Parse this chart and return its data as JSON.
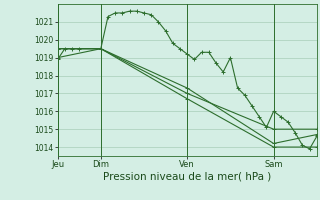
{
  "bg_color": "#d4eee4",
  "grid_color": "#a8cdb8",
  "line_color": "#2d6e2d",
  "marker_color": "#2d6e2d",
  "xlabel": "Pression niveau de la mer( hPa )",
  "xlabel_fontsize": 7.5,
  "ylim": [
    1013.5,
    1022.0
  ],
  "yticks": [
    1014,
    1015,
    1016,
    1017,
    1018,
    1019,
    1020,
    1021
  ],
  "xtick_labels": [
    "Jeu",
    "Dim",
    "Ven",
    "Sam"
  ],
  "xtick_positions": [
    0,
    36,
    108,
    180
  ],
  "vline_positions": [
    0,
    36,
    108,
    180
  ],
  "xlim": [
    0,
    216
  ],
  "series0_x": [
    0,
    6,
    12,
    18,
    36,
    42,
    48,
    54,
    60,
    66,
    72,
    78,
    84,
    90,
    96,
    102,
    108,
    114,
    120,
    126,
    132,
    138,
    144,
    150,
    156,
    162,
    168,
    174,
    180,
    186,
    192,
    198,
    204,
    210,
    216
  ],
  "series0_y": [
    1018.9,
    1019.5,
    1019.5,
    1019.5,
    1019.5,
    1021.3,
    1021.5,
    1021.5,
    1021.6,
    1021.6,
    1021.5,
    1021.4,
    1021.0,
    1020.5,
    1019.8,
    1019.5,
    1019.2,
    1018.9,
    1019.3,
    1019.3,
    1018.7,
    1018.2,
    1019.0,
    1017.3,
    1016.9,
    1016.3,
    1015.7,
    1015.1,
    1016.0,
    1015.7,
    1015.4,
    1014.8,
    1014.1,
    1013.9,
    1014.6
  ],
  "series1_x": [
    0,
    36,
    108,
    180,
    216
  ],
  "series1_y": [
    1019.0,
    1019.5,
    1017.3,
    1014.2,
    1014.7
  ],
  "series2_x": [
    0,
    36,
    108,
    180,
    216
  ],
  "series2_y": [
    1019.5,
    1019.5,
    1017.0,
    1015.0,
    1015.0
  ],
  "series3_x": [
    0,
    36,
    108,
    180,
    216
  ],
  "series3_y": [
    1019.5,
    1019.5,
    1016.7,
    1014.0,
    1014.0
  ]
}
